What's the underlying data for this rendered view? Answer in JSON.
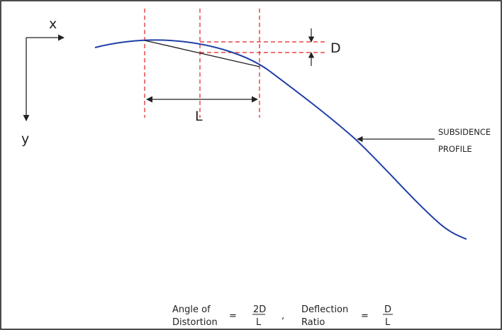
{
  "axes": {
    "x_label": "x",
    "y_label": "y"
  },
  "labels": {
    "deflection": "D",
    "length": "L",
    "profile_line1": "SUBSIDENCE",
    "profile_line2": "PROFILE"
  },
  "formula": {
    "angle_line1": "Angle of",
    "angle_line2": "Distortion",
    "equals": "=",
    "angle_numerator": "2D",
    "angle_denominator": "L",
    "separator": ",",
    "ratio_line1": "Deflection",
    "ratio_line2": "Ratio",
    "ratio_numerator": "D",
    "ratio_denominator": "L"
  },
  "colors": {
    "profile_curve": "#1f3fa8",
    "guide_lines": "#e02020",
    "line": "#222222",
    "border": "#111111"
  }
}
